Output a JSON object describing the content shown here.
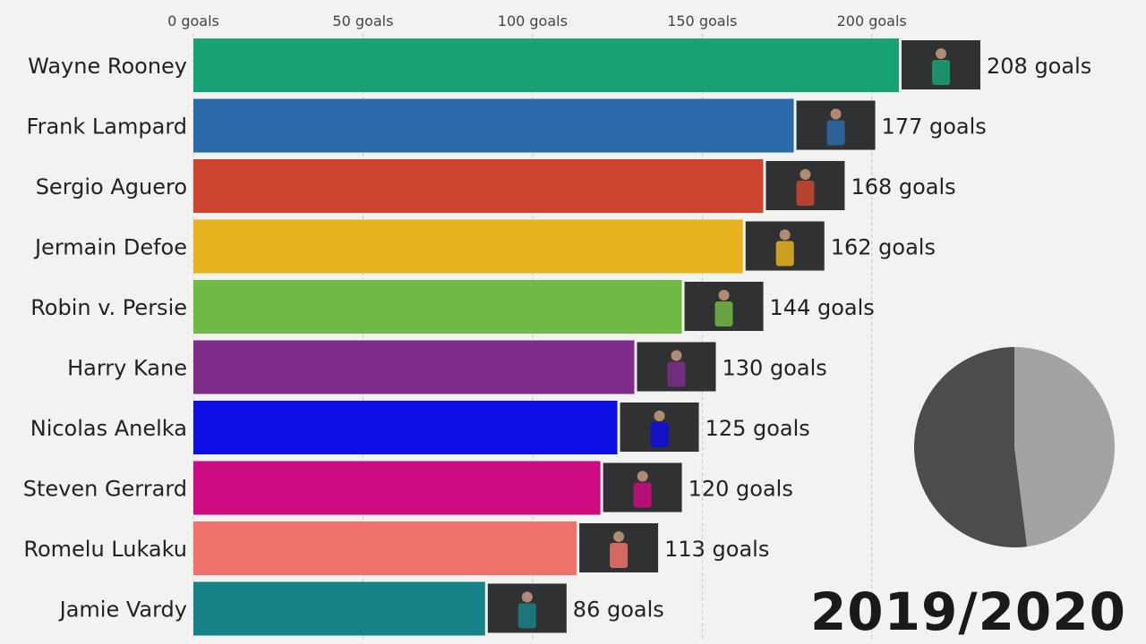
{
  "chart_data": {
    "type": "bar",
    "orientation": "horizontal",
    "categories": [
      "Wayne Rooney",
      "Frank Lampard",
      "Sergio Aguero",
      "Jermain Defoe",
      "Robin v. Persie",
      "Harry Kane",
      "Nicolas Anelka",
      "Steven Gerrard",
      "Romelu Lukaku",
      "Jamie Vardy"
    ],
    "values": [
      208,
      177,
      168,
      162,
      144,
      130,
      125,
      120,
      113,
      86
    ],
    "value_labels": [
      "208 goals",
      "177 goals",
      "168 goals",
      "162 goals",
      "144 goals",
      "130 goals",
      "125 goals",
      "120 goals",
      "113 goals",
      "86 goals"
    ],
    "colors": [
      "#19a176",
      "#2b6aa8",
      "#cc452e",
      "#e8b21f",
      "#70b944",
      "#7e2e8a",
      "#0d0de4",
      "#cc0c80",
      "#f0736b",
      "#168288"
    ],
    "xticks": [
      0,
      50,
      100,
      150,
      200
    ],
    "xtick_labels": [
      "0 goals",
      "50 goals",
      "100 goals",
      "150 goals",
      "200 goals"
    ],
    "xlim": [
      0,
      208
    ],
    "grid": true,
    "axis_position": "top",
    "period": "2019/2020",
    "pie": {
      "values": [
        52,
        48
      ],
      "colors": [
        "#4b4c4b",
        "#a2a3a2"
      ]
    }
  }
}
